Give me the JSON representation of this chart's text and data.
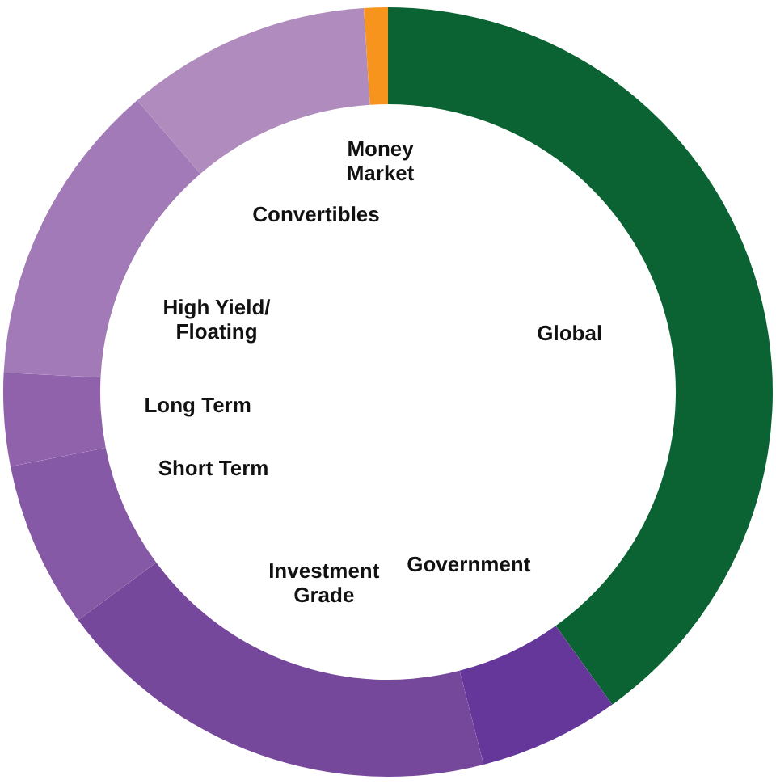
{
  "chart_data": {
    "type": "donut",
    "categories": [
      "Global",
      "Government",
      "Investment\nGrade",
      "Short Term",
      "Long Term",
      "High Yield/\nFloating",
      "Convertibles",
      "Money\nMarket"
    ],
    "values": [
      40.1,
      5.9,
      18.9,
      7.0,
      3.9,
      12.9,
      10.3,
      1.0
    ],
    "colors": [
      "#0b6333",
      "#66379a",
      "#76489c",
      "#8659a6",
      "#8f62ab",
      "#a37ab8",
      "#b08bbd",
      "#f7941d"
    ]
  }
}
